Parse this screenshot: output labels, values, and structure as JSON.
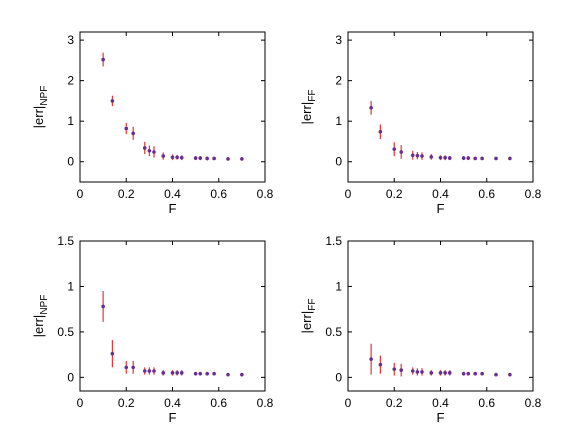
{
  "chart_data": [
    {
      "type": "scatter",
      "xlabel": "F",
      "ylabel_main": "|err|",
      "ylabel_sub": "NPF",
      "xlim": [
        0,
        0.8
      ],
      "ylim": [
        -0.5,
        3.2
      ],
      "xticks": [
        "0",
        "0.2",
        "0.4",
        "0.6",
        "0.8"
      ],
      "yticks": [
        "0",
        "1",
        "2",
        "3"
      ],
      "series": [
        {
          "x": [
            0.1,
            0.14,
            0.2,
            0.23,
            0.28,
            0.3,
            0.32,
            0.36,
            0.4,
            0.42,
            0.44,
            0.5,
            0.52,
            0.55,
            0.58,
            0.64,
            0.7
          ],
          "y": [
            2.52,
            1.5,
            0.82,
            0.7,
            0.34,
            0.27,
            0.24,
            0.14,
            0.11,
            0.11,
            0.1,
            0.09,
            0.09,
            0.08,
            0.08,
            0.07,
            0.07
          ],
          "err": [
            0.17,
            0.13,
            0.14,
            0.16,
            0.15,
            0.13,
            0.14,
            0.09,
            0.07,
            0.06,
            0.06,
            0.05,
            0.05,
            0.05,
            0.04,
            0.04,
            0.04
          ]
        }
      ]
    },
    {
      "type": "scatter",
      "xlabel": "F",
      "ylabel_main": "|err|",
      "ylabel_sub": "FF",
      "xlim": [
        0,
        0.8
      ],
      "ylim": [
        -0.5,
        3.2
      ],
      "xticks": [
        "0",
        "0.2",
        "0.4",
        "0.6",
        "0.8"
      ],
      "yticks": [
        "0",
        "1",
        "2",
        "3"
      ],
      "series": [
        {
          "x": [
            0.1,
            0.14,
            0.2,
            0.23,
            0.28,
            0.3,
            0.32,
            0.36,
            0.4,
            0.42,
            0.44,
            0.5,
            0.52,
            0.55,
            0.58,
            0.64,
            0.7
          ],
          "y": [
            1.33,
            0.74,
            0.31,
            0.24,
            0.16,
            0.15,
            0.14,
            0.12,
            0.1,
            0.1,
            0.09,
            0.09,
            0.09,
            0.08,
            0.08,
            0.08,
            0.08
          ],
          "err": [
            0.17,
            0.18,
            0.17,
            0.17,
            0.11,
            0.09,
            0.09,
            0.07,
            0.06,
            0.06,
            0.05,
            0.05,
            0.05,
            0.04,
            0.04,
            0.04,
            0.04
          ]
        }
      ]
    },
    {
      "type": "scatter",
      "xlabel": "F",
      "ylabel_main": "|err|",
      "ylabel_sub": "NPF",
      "xlim": [
        0,
        0.8
      ],
      "ylim": [
        -0.15,
        1.5
      ],
      "xticks": [
        "0",
        "0.2",
        "0.4",
        "0.6",
        "0.8"
      ],
      "yticks": [
        "0",
        "0.5",
        "1",
        "1.5"
      ],
      "series": [
        {
          "x": [
            0.1,
            0.14,
            0.2,
            0.23,
            0.28,
            0.3,
            0.32,
            0.36,
            0.4,
            0.42,
            0.44,
            0.5,
            0.52,
            0.55,
            0.58,
            0.64,
            0.7
          ],
          "y": [
            0.78,
            0.26,
            0.11,
            0.11,
            0.07,
            0.07,
            0.07,
            0.05,
            0.05,
            0.05,
            0.05,
            0.04,
            0.04,
            0.04,
            0.04,
            0.03,
            0.03
          ],
          "err": [
            0.17,
            0.15,
            0.07,
            0.07,
            0.04,
            0.04,
            0.04,
            0.03,
            0.03,
            0.03,
            0.03,
            0.02,
            0.02,
            0.02,
            0.02,
            0.02,
            0.02
          ]
        }
      ]
    },
    {
      "type": "scatter",
      "xlabel": "F",
      "ylabel_main": "|err|",
      "ylabel_sub": "FF",
      "xlim": [
        0,
        0.8
      ],
      "ylim": [
        -0.15,
        1.5
      ],
      "xticks": [
        "0",
        "0.2",
        "0.4",
        "0.6",
        "0.8"
      ],
      "yticks": [
        "0",
        "0.5",
        "1",
        "1.5"
      ],
      "series": [
        {
          "x": [
            0.1,
            0.14,
            0.2,
            0.23,
            0.28,
            0.3,
            0.32,
            0.36,
            0.4,
            0.42,
            0.44,
            0.5,
            0.52,
            0.55,
            0.58,
            0.64,
            0.7
          ],
          "y": [
            0.2,
            0.14,
            0.09,
            0.08,
            0.07,
            0.06,
            0.06,
            0.05,
            0.05,
            0.05,
            0.05,
            0.04,
            0.04,
            0.04,
            0.04,
            0.03,
            0.03
          ],
          "err": [
            0.17,
            0.1,
            0.07,
            0.07,
            0.04,
            0.04,
            0.04,
            0.03,
            0.03,
            0.03,
            0.03,
            0.02,
            0.02,
            0.02,
            0.02,
            0.02,
            0.02
          ]
        }
      ]
    }
  ],
  "colors": {
    "errorbar": "#d93a3a",
    "marker": "#6a2c8e",
    "axis": "#000000"
  }
}
